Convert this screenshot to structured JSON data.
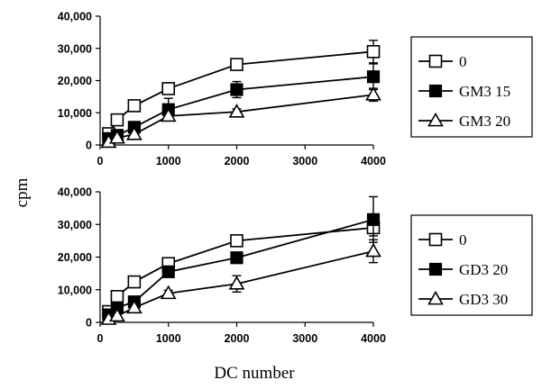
{
  "page": {
    "xlabel": "DC number",
    "ylabel": "cpm"
  },
  "chart_data": [
    {
      "type": "line",
      "title": "",
      "xlabel": "DC number",
      "ylabel": "cpm",
      "x": [
        125,
        250,
        500,
        1000,
        2000,
        4000
      ],
      "xlim": [
        0,
        4000
      ],
      "ylim": [
        0,
        40000
      ],
      "xticks": [
        0,
        1000,
        2000,
        3000,
        4000
      ],
      "xtick_labels": [
        "0",
        "1000",
        "2000",
        "3000",
        "4000"
      ],
      "yticks": [
        0,
        10000,
        20000,
        30000,
        40000
      ],
      "ytick_labels": [
        "0",
        "10,000",
        "20,000",
        "30,000",
        "40,000"
      ],
      "legend_position": "right",
      "series": [
        {
          "name": "0",
          "marker": "open-square",
          "values": [
            3500,
            7800,
            12200,
            17500,
            25000,
            29000
          ],
          "err": [
            500,
            700,
            700,
            800,
            900,
            3500
          ]
        },
        {
          "name": "GM3 15",
          "marker": "filled-square",
          "values": [
            2000,
            3000,
            5500,
            11000,
            17200,
            21200
          ],
          "err": [
            400,
            600,
            700,
            3500,
            2500,
            4000
          ]
        },
        {
          "name": "GM3 20",
          "marker": "open-triangle",
          "values": [
            900,
            2200,
            3300,
            9000,
            10300,
            15600
          ],
          "err": [
            300,
            500,
            600,
            900,
            900,
            2000
          ]
        }
      ]
    },
    {
      "type": "line",
      "title": "",
      "xlabel": "DC number",
      "ylabel": "cpm",
      "x": [
        125,
        250,
        500,
        1000,
        2000,
        4000
      ],
      "xlim": [
        0,
        4000
      ],
      "ylim": [
        0,
        40000
      ],
      "xticks": [
        0,
        1000,
        2000,
        3000,
        4000
      ],
      "xtick_labels": [
        "0",
        "1000",
        "2000",
        "3000",
        "4000"
      ],
      "yticks": [
        0,
        10000,
        20000,
        30000,
        40000
      ],
      "ytick_labels": [
        "0",
        "10,000",
        "20,000",
        "30,000",
        "40,000"
      ],
      "legend_position": "right",
      "series": [
        {
          "name": "0",
          "marker": "open-square",
          "values": [
            3300,
            7900,
            12400,
            18000,
            25000,
            29000
          ],
          "err": [
            500,
            700,
            700,
            800,
            900,
            2500
          ]
        },
        {
          "name": "GD3 20",
          "marker": "filled-square",
          "values": [
            2300,
            4500,
            6300,
            15500,
            19800,
            31500
          ],
          "err": [
            400,
            600,
            900,
            1000,
            1200,
            7000
          ]
        },
        {
          "name": "GD3 30",
          "marker": "open-triangle",
          "values": [
            1000,
            2000,
            4500,
            8900,
            11800,
            21800
          ],
          "err": [
            300,
            500,
            700,
            900,
            2500,
            3500
          ]
        }
      ]
    }
  ]
}
